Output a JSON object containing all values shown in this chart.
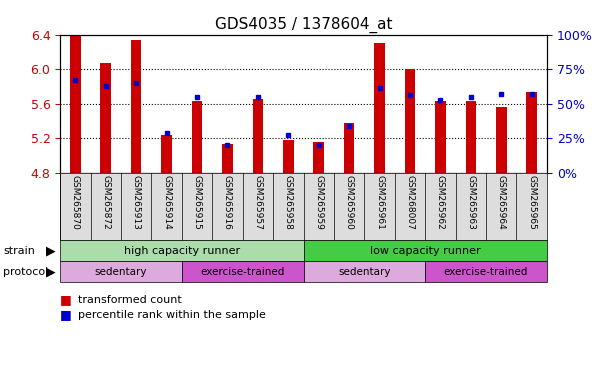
{
  "title": "GDS4035 / 1378604_at",
  "samples": [
    "GSM265870",
    "GSM265872",
    "GSM265913",
    "GSM265914",
    "GSM265915",
    "GSM265916",
    "GSM265957",
    "GSM265958",
    "GSM265959",
    "GSM265960",
    "GSM265961",
    "GSM268007",
    "GSM265962",
    "GSM265963",
    "GSM265964",
    "GSM265965"
  ],
  "transformed_count": [
    6.39,
    6.07,
    6.34,
    5.24,
    5.63,
    5.13,
    5.65,
    5.18,
    5.16,
    5.38,
    6.3,
    6.0,
    5.63,
    5.63,
    5.56,
    5.73
  ],
  "percentile_rank": [
    67,
    63,
    65,
    29,
    55,
    20,
    55,
    27,
    20,
    34,
    61,
    56,
    53,
    55,
    57,
    57
  ],
  "ymin": 4.8,
  "ymax": 6.4,
  "yticks": [
    4.8,
    5.2,
    5.6,
    6.0,
    6.4
  ],
  "right_yticks": [
    0,
    25,
    50,
    75,
    100
  ],
  "bar_color": "#cc0000",
  "blue_color": "#0000cc",
  "strain_groups": [
    {
      "label": "high capacity runner",
      "start": 0,
      "end": 8,
      "color": "#aaddaa"
    },
    {
      "label": "low capacity runner",
      "start": 8,
      "end": 16,
      "color": "#44cc44"
    }
  ],
  "protocol_groups": [
    {
      "label": "sedentary",
      "start": 0,
      "end": 4,
      "color": "#ddaadd"
    },
    {
      "label": "exercise-trained",
      "start": 4,
      "end": 8,
      "color": "#cc55cc"
    },
    {
      "label": "sedentary",
      "start": 8,
      "end": 12,
      "color": "#ddaadd"
    },
    {
      "label": "exercise-trained",
      "start": 12,
      "end": 16,
      "color": "#cc55cc"
    }
  ],
  "strain_label": "strain",
  "protocol_label": "protocol",
  "legend_items": [
    {
      "label": "transformed count",
      "color": "#cc0000"
    },
    {
      "label": "percentile rank within the sample",
      "color": "#0000cc"
    }
  ],
  "tick_label_color": "#cc0000",
  "right_tick_color": "#0000cc",
  "bar_width": 0.35,
  "title_fontsize": 11,
  "tick_fontsize": 9,
  "sample_fontsize": 6.5,
  "label_fontsize": 8,
  "legend_fontsize": 8
}
